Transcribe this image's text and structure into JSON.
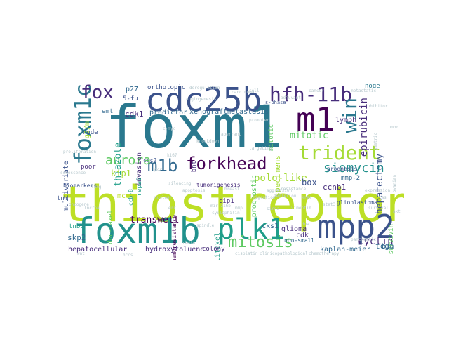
{
  "palette": {
    "teal": "#2a788e",
    "tealdark": "#21918c",
    "purple": "#472d7b",
    "darkpurple": "#440154",
    "indigo": "#3b528b",
    "green": "#5ec962",
    "lime": "#a5db36",
    "yellowgreen": "#bddf26",
    "navy": "#31688e",
    "cyan": "#1f9e89",
    "grey": "#b5c7cc"
  },
  "words": [
    {
      "text": "thiostrepton",
      "color": "yellowgreen"
    },
    {
      "text": "foxm1",
      "color": "teal"
    },
    {
      "text": "foxm1b",
      "color": "tealdark"
    },
    {
      "text": "mpp2",
      "color": "indigo"
    },
    {
      "text": "cdc25b",
      "color": "indigo"
    },
    {
      "text": "m1",
      "color": "darkpurple"
    },
    {
      "text": "plk1",
      "color": "cyan"
    },
    {
      "text": "foxm1c",
      "color": "teal"
    },
    {
      "text": "trident",
      "color": "lime"
    },
    {
      "text": "hfh-11b",
      "color": "purple"
    },
    {
      "text": "win",
      "color": "teal"
    },
    {
      "text": "forkhead",
      "color": "darkpurple"
    },
    {
      "text": "mitosis",
      "color": "green"
    },
    {
      "text": "m1b",
      "color": "navy"
    },
    {
      "text": "fox",
      "color": "purple"
    },
    {
      "text": "aurora",
      "color": "green"
    },
    {
      "text": "siomycin",
      "color": "tealdark"
    },
    {
      "text": "polo-like",
      "color": "lime"
    },
    {
      "text": "epirubicin",
      "color": "purple"
    },
    {
      "text": "hepatectomy",
      "color": "indigo"
    },
    {
      "text": "box",
      "color": "indigo"
    },
    {
      "text": "cyclin",
      "color": "purple"
    },
    {
      "text": "mitotic",
      "color": "green"
    },
    {
      "text": "thiazole",
      "color": "cyan"
    },
    {
      "text": "xenograft",
      "color": "navy"
    },
    {
      "text": "metastasis",
      "color": "navy"
    },
    {
      "text": "ccnb1",
      "color": "purple"
    },
    {
      "text": "transwell",
      "color": "darkpurple"
    },
    {
      "text": "kip1",
      "color": "lime"
    },
    {
      "text": "cdk1",
      "color": "purple"
    },
    {
      "text": "invasion",
      "color": "purple"
    },
    {
      "text": "predictor",
      "color": "navy"
    },
    {
      "text": "specimens",
      "color": "lime"
    },
    {
      "text": "hepatocellular",
      "color": "purple"
    },
    {
      "text": "hydroxytoluene",
      "color": "purple"
    },
    {
      "text": "kaplan-meier",
      "color": "navy"
    },
    {
      "text": "mitotic",
      "color": "green"
    },
    {
      "text": "survivin",
      "color": "green"
    },
    {
      "text": "paclitaxel",
      "color": "cyan"
    },
    {
      "text": "prognostic",
      "color": "green"
    },
    {
      "text": "glioma",
      "color": "purple"
    },
    {
      "text": "multivariate",
      "color": "indigo"
    },
    {
      "text": "skp2",
      "color": "navy"
    },
    {
      "text": "tcga",
      "color": "navy"
    },
    {
      "text": "g2/m",
      "color": "lime"
    },
    {
      "text": "p27",
      "color": "navy"
    },
    {
      "text": "5-fu",
      "color": "indigo"
    },
    {
      "text": "colony",
      "color": "purple"
    },
    {
      "text": "cks1",
      "color": "navy"
    },
    {
      "text": "lymph",
      "color": "purple"
    },
    {
      "text": "node",
      "color": "teal"
    },
    {
      "text": "mcc",
      "color": "yellowgreen"
    },
    {
      "text": "nude",
      "color": "indigo"
    },
    {
      "text": "poor",
      "color": "purple"
    },
    {
      "text": "emt",
      "color": "navy"
    },
    {
      "text": "orthotopic",
      "color": "indigo"
    },
    {
      "text": "b1",
      "color": "navy"
    },
    {
      "text": "bnt",
      "color": "purple"
    },
    {
      "text": "tnbc",
      "color": "cyan"
    },
    {
      "text": "tnm",
      "color": "indigo"
    },
    {
      "text": "cdk",
      "color": "purple"
    },
    {
      "text": "repair",
      "color": "cyan"
    },
    {
      "text": "tumorigenesis",
      "color": "purple"
    },
    {
      "text": "chemoresistance",
      "color": "darkpurple"
    },
    {
      "text": "non-small",
      "color": "navy"
    },
    {
      "text": "glioblastoma",
      "color": "indigo"
    },
    {
      "text": "mmp-2",
      "color": "navy"
    },
    {
      "text": "cip1",
      "color": "purple"
    },
    {
      "text": "prognosis",
      "color": "indigo"
    },
    {
      "text": "biomarkers",
      "color": "indigo"
    },
    {
      "text": "cdc2",
      "color": "indigo"
    },
    {
      "text": "ccb-8",
      "color": "cyan"
    },
    {
      "text": "docetaxel",
      "color": "green"
    },
    {
      "text": "s-phase",
      "color": "indigo"
    },
    {
      "text": "gastric",
      "color": "grey"
    },
    {
      "text": "cisplatin",
      "color": "grey"
    },
    {
      "text": "clinicopathological",
      "color": "grey"
    },
    {
      "text": "chemotherapy",
      "color": "grey"
    },
    {
      "text": "deregulation",
      "color": "grey"
    },
    {
      "text": "carcinoma",
      "color": "grey"
    },
    {
      "text": "adjuvant",
      "color": "grey"
    },
    {
      "text": "ovarian",
      "color": "grey"
    },
    {
      "text": "apoptosis",
      "color": "grey"
    },
    {
      "text": "proliferation",
      "color": "grey"
    },
    {
      "text": "oncogene",
      "color": "grey"
    },
    {
      "text": "senescence",
      "color": "grey"
    },
    {
      "text": "angiogenesis",
      "color": "grey"
    },
    {
      "text": "metastatic",
      "color": "grey"
    },
    {
      "text": "pancreatic",
      "color": "grey"
    },
    {
      "text": "migration",
      "color": "grey"
    },
    {
      "text": "sirna",
      "color": "grey"
    },
    {
      "text": "ki67",
      "color": "grey"
    },
    {
      "text": "knockdown",
      "color": "grey"
    },
    {
      "text": "breast",
      "color": "grey"
    },
    {
      "text": "inhibitor",
      "color": "grey"
    },
    {
      "text": "tumor",
      "color": "grey"
    },
    {
      "text": "cell",
      "color": "grey"
    },
    {
      "text": "cancer",
      "color": "grey"
    },
    {
      "text": "expression",
      "color": "grey"
    },
    {
      "text": "survival",
      "color": "grey"
    },
    {
      "text": "resistance",
      "color": "grey"
    },
    {
      "text": "mir-216b",
      "color": "grey"
    },
    {
      "text": "cyclophilin",
      "color": "grey"
    },
    {
      "text": "spindle",
      "color": "grey"
    },
    {
      "text": "radio",
      "color": "grey"
    },
    {
      "text": "aggression",
      "color": "grey"
    },
    {
      "text": "depletion",
      "color": "grey"
    },
    {
      "text": "nuclear",
      "color": "grey"
    },
    {
      "text": "mmp",
      "color": "grey"
    },
    {
      "text": "erk",
      "color": "grey"
    },
    {
      "text": "ras",
      "color": "grey"
    },
    {
      "text": "akt",
      "color": "grey"
    },
    {
      "text": "stat3",
      "color": "grey"
    },
    {
      "text": "lncrna",
      "color": "grey"
    },
    {
      "text": "wnt",
      "color": "grey"
    },
    {
      "text": "hccs",
      "color": "grey"
    },
    {
      "text": "aberrant",
      "color": "grey"
    },
    {
      "text": "targeting",
      "color": "grey"
    },
    {
      "text": "promoter",
      "color": "grey"
    },
    {
      "text": "dna",
      "color": "grey"
    },
    {
      "text": "c-myc",
      "color": "grey"
    },
    {
      "text": "silencing",
      "color": "grey"
    },
    {
      "text": "vimentin",
      "color": "grey"
    },
    {
      "text": "lung",
      "color": "grey"
    },
    {
      "text": "pcr",
      "color": "grey"
    },
    {
      "text": "kras",
      "color": "grey"
    }
  ]
}
